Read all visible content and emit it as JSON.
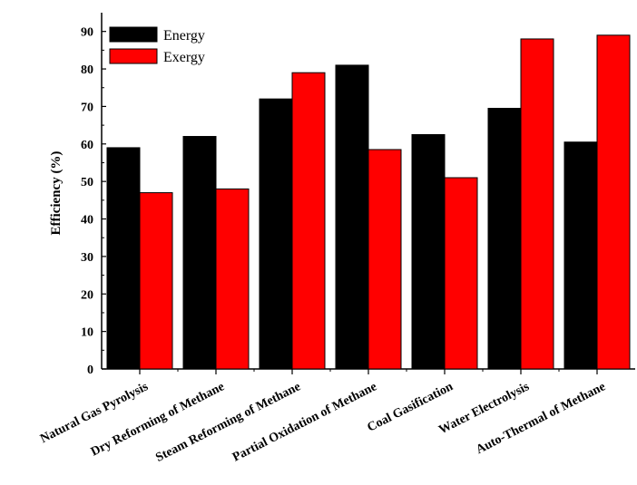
{
  "chart_data": {
    "type": "bar",
    "title": "",
    "xlabel": "",
    "ylabel": "Efficiency (%)",
    "ylim": [
      0,
      95
    ],
    "yticks": [
      0,
      10,
      20,
      30,
      40,
      50,
      60,
      70,
      80,
      90
    ],
    "grid": false,
    "legend_position": "top-left",
    "categories": [
      "Natural Gas Pyrolysis",
      "Dry Reforming of Methane",
      "Steam Reforming of Methane",
      "Partial Oxidation of Methane",
      "Coal Gasification",
      "Water Electrolysis",
      "Auto-Thermal of Methane"
    ],
    "series": [
      {
        "name": "Energy",
        "color": "#000000",
        "values": [
          59,
          62,
          72,
          81,
          62.5,
          69.5,
          60.5
        ]
      },
      {
        "name": "Exergy",
        "color": "#ff0000",
        "values": [
          47,
          48,
          79,
          58.5,
          51,
          88,
          89
        ]
      }
    ]
  }
}
